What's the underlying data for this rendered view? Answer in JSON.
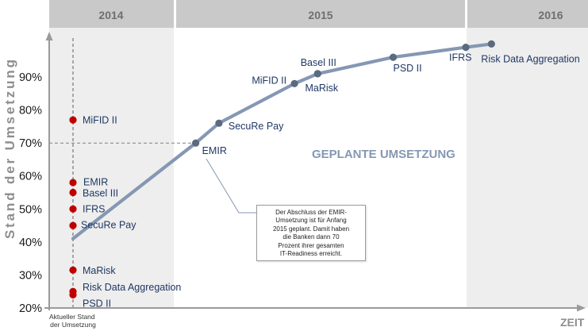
{
  "chart_data": {
    "type": "line",
    "periods": [
      "2014",
      "2015",
      "2016"
    ],
    "ylabel": "Stand der Umsetzung",
    "xlabel": "ZEIT",
    "ylim": [
      20,
      100
    ],
    "yticks": [
      {
        "value": 90,
        "label": "90%"
      },
      {
        "value": 80,
        "label": "80%"
      },
      {
        "value": 70,
        "label": "70%"
      },
      {
        "value": 60,
        "label": "60%"
      },
      {
        "value": 50,
        "label": "50%"
      },
      {
        "value": 40,
        "label": "40%"
      },
      {
        "value": 30,
        "label": "30%"
      },
      {
        "value": 20,
        "label": "20%"
      }
    ],
    "grid": false,
    "legend": false,
    "current_state": {
      "label": [
        "Aktueller Stand",
        "der Umsetzung"
      ],
      "x": 2014.19,
      "points": [
        {
          "name": "MiFID II",
          "y": 77
        },
        {
          "name": "EMIR",
          "y": 58
        },
        {
          "name": "Basel III",
          "y": 55
        },
        {
          "name": "IFRS",
          "y": 50
        },
        {
          "name": "SecuRe Pay",
          "y": 45
        },
        {
          "name": "MaRisk",
          "y": 31.5
        },
        {
          "name": "Risk Data Aggregation",
          "y": 25
        },
        {
          "name": "PSD II",
          "y": 24
        }
      ]
    },
    "planned": {
      "label": "GEPLANTE UMSETZUNG",
      "start": {
        "x": 2014.19,
        "y": 41
      },
      "points": [
        {
          "name": "EMIR",
          "x": 2015.07,
          "y": 70
        },
        {
          "name": "SecuRe Pay",
          "x": 2015.15,
          "y": 76
        },
        {
          "name": "MiFID II",
          "x": 2015.41,
          "y": 88
        },
        {
          "name": "Basel III",
          "x": 2015.49,
          "y": 91
        },
        {
          "name": "MaRisk",
          "x": 2015.49,
          "y": 91
        },
        {
          "name": "PSD II",
          "x": 2015.75,
          "y": 96
        },
        {
          "name": "IFRS",
          "x": 2016.0,
          "y": 99
        },
        {
          "name": "Risk Data Aggregation",
          "x": 2016.21,
          "y": 100
        }
      ]
    },
    "reference_line": {
      "y": 70,
      "x_end": 2015.07
    },
    "annotation": {
      "lines": [
        "Der Abschluss der EMIR-",
        "Umsetzung ist für Anfang",
        "2015 geplant. Damit haben",
        "die Banken dann 70",
        "Prozent ihrer gesamten",
        "IT-Readiness erreicht."
      ]
    },
    "colors": {
      "header": "#c9c9c9",
      "header_text": "#6f6f6f",
      "band_shade": "#eeeeee",
      "axis": "#9a9a9a",
      "axis_title": "#8e8e8e",
      "current_dot": "#c00000",
      "planned_line": "#8597b3",
      "planned_dot": "#5a6a7f",
      "point_label": "#1f3864"
    }
  }
}
